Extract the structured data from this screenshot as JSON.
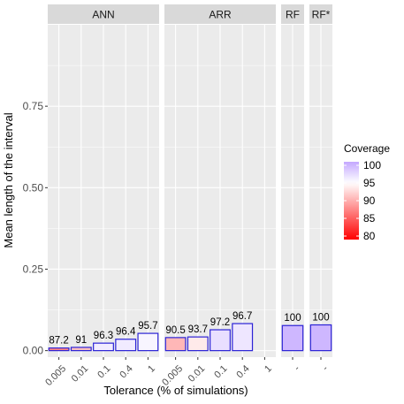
{
  "chart_data": {
    "type": "bar",
    "ylabel": "Mean length of the interval",
    "xlabel": "Tolerance (% of simulations)",
    "ylim": [
      -0.02,
      1.0
    ],
    "y_ticks": [
      0.0,
      0.25,
      0.5,
      0.75
    ],
    "y_tick_labels": [
      "0.00",
      "0.25",
      "0.50",
      "0.75"
    ],
    "panels": [
      {
        "name": "ANN",
        "categories": [
          "0.005",
          "0.01",
          "0.1",
          "0.4",
          "1"
        ],
        "values": [
          0.008,
          0.01,
          0.023,
          0.035,
          0.053
        ],
        "coverage": [
          87.2,
          91,
          96.3,
          96.4,
          95.7
        ],
        "labels": [
          "87.2",
          "91",
          "96.3",
          "96.4",
          "95.7"
        ]
      },
      {
        "name": "ARR",
        "categories": [
          "0.005",
          "0.01",
          "0.1",
          "0.4",
          "1"
        ],
        "values": [
          0.04,
          0.042,
          0.064,
          0.083,
          null
        ],
        "coverage": [
          90.5,
          93.7,
          97.2,
          96.7,
          null
        ],
        "labels": [
          "90.5",
          "93.7",
          "97.2",
          "96.7",
          ""
        ]
      },
      {
        "name": "RF",
        "categories": [
          "-"
        ],
        "values": [
          0.077
        ],
        "coverage": [
          100
        ],
        "labels": [
          "100"
        ]
      },
      {
        "name": "RF*",
        "categories": [
          "-"
        ],
        "values": [
          0.079
        ],
        "coverage": [
          100
        ],
        "labels": [
          "100"
        ]
      }
    ],
    "legend": {
      "title": "Coverage",
      "ticks": [
        "100",
        "95",
        "90",
        "85",
        "80"
      ],
      "tick_values": [
        100,
        95,
        90,
        85,
        80
      ],
      "range": [
        79,
        101
      ],
      "position": "right"
    },
    "colors": {
      "low": "#ff0000",
      "mid": "#ffffff",
      "high": "#c4a8ff",
      "outline": "#2b22d6",
      "panel_bg": "#ebebeb",
      "strip_bg": "#d9d9d9",
      "grid": "#ffffff"
    },
    "grid": true
  }
}
